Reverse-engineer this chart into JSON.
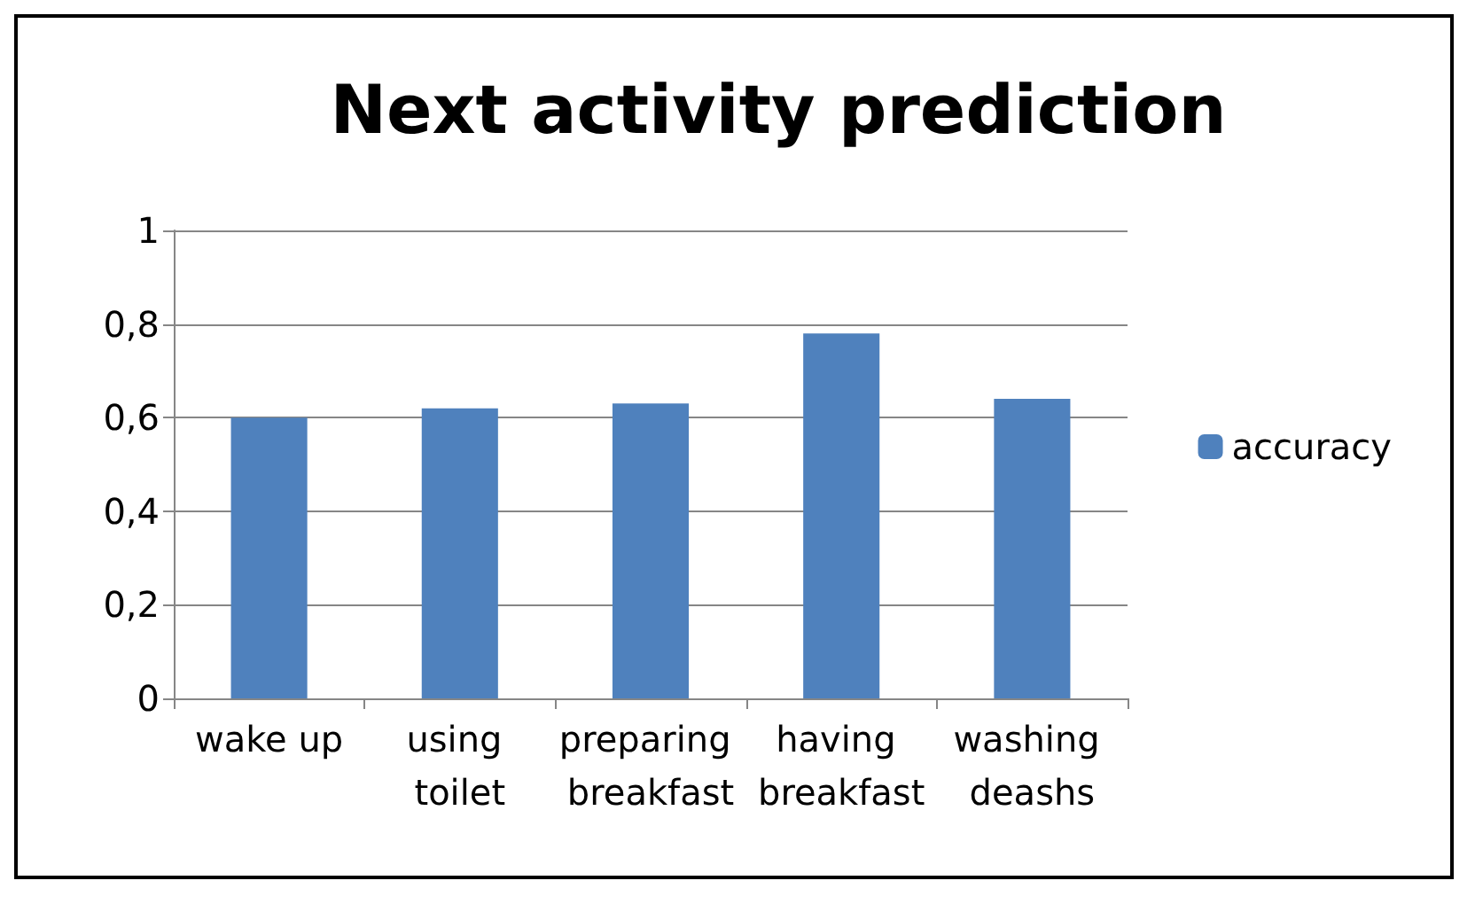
{
  "chart_data": {
    "type": "bar",
    "title": "Next activity prediction",
    "categories": [
      "wake up",
      "using toilet",
      "preparing breakfast",
      "having breakfast",
      "washing deashs"
    ],
    "series": [
      {
        "name": "accuracy",
        "color": "#4f81bd",
        "values": [
          0.6,
          0.62,
          0.63,
          0.78,
          0.64
        ]
      }
    ],
    "ylim": [
      0,
      1
    ],
    "yticks": [
      0,
      {
        "value": 0.2,
        "label": "0,2"
      },
      {
        "value": 0.4,
        "label": "0,4"
      },
      {
        "value": 0.6,
        "label": "0,6"
      },
      {
        "value": 0.8,
        "label": "0,8"
      },
      1
    ],
    "grid": "y",
    "legend": "right"
  }
}
